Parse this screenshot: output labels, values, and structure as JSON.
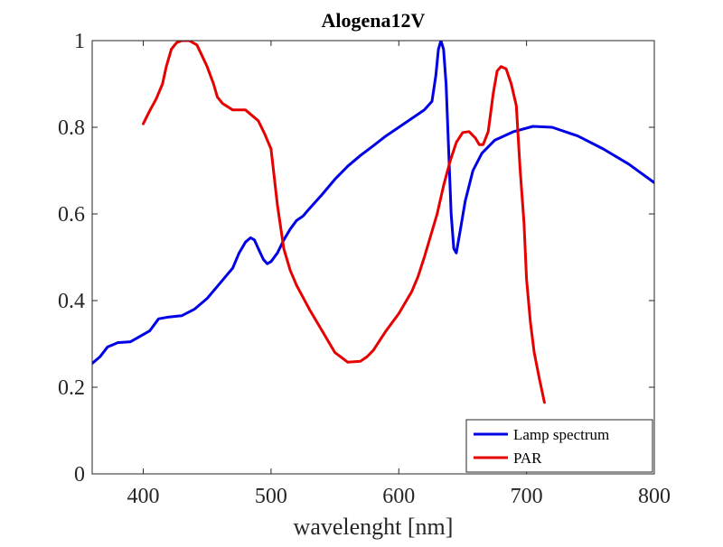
{
  "chart_data": {
    "type": "line",
    "title": "Alogena12V",
    "xlabel": "wavelenght [nm]",
    "ylabel": "",
    "xlim": [
      360,
      800
    ],
    "ylim": [
      0,
      1
    ],
    "xticks": [
      400,
      500,
      600,
      700,
      800
    ],
    "yticks": [
      0,
      0.2,
      0.4,
      0.6,
      0.8,
      1
    ],
    "xtick_labels": [
      "400",
      "500",
      "600",
      "700",
      "800"
    ],
    "ytick_labels": [
      "0",
      "0.2",
      "0.4",
      "0.6",
      "0.8",
      "1"
    ],
    "grid": false,
    "legend_position": "bottom-right",
    "series": [
      {
        "name": "Lamp spectrum",
        "color": "#0000e6",
        "x": [
          360,
          366,
          372,
          380,
          390,
          396,
          405,
          412,
          420,
          430,
          440,
          450,
          460,
          470,
          475,
          480,
          484,
          487,
          490,
          494,
          497,
          500,
          505,
          510,
          515,
          520,
          525,
          530,
          540,
          550,
          560,
          570,
          580,
          590,
          600,
          610,
          620,
          626,
          629,
          631,
          633,
          635,
          637,
          639,
          641,
          643,
          645,
          648,
          652,
          658,
          665,
          675,
          690,
          705,
          720,
          740,
          760,
          780,
          800
        ],
        "y": [
          0.255,
          0.27,
          0.293,
          0.303,
          0.305,
          0.315,
          0.33,
          0.358,
          0.362,
          0.365,
          0.38,
          0.405,
          0.44,
          0.475,
          0.51,
          0.535,
          0.545,
          0.54,
          0.52,
          0.495,
          0.485,
          0.49,
          0.51,
          0.54,
          0.565,
          0.585,
          0.595,
          0.612,
          0.645,
          0.68,
          0.71,
          0.735,
          0.757,
          0.78,
          0.8,
          0.82,
          0.84,
          0.86,
          0.92,
          0.98,
          1.0,
          0.98,
          0.9,
          0.75,
          0.6,
          0.52,
          0.51,
          0.56,
          0.63,
          0.7,
          0.74,
          0.77,
          0.79,
          0.802,
          0.8,
          0.78,
          0.75,
          0.715,
          0.672
        ]
      },
      {
        "name": "PAR",
        "color": "#e60000",
        "x": [
          400,
          405,
          410,
          415,
          418,
          422,
          426,
          430,
          436,
          442,
          446,
          450,
          455,
          458,
          462,
          470,
          480,
          490,
          495,
          500,
          505,
          507,
          510,
          515,
          520,
          530,
          540,
          550,
          560,
          570,
          575,
          580,
          590,
          600,
          610,
          615,
          620,
          625,
          630,
          635,
          640,
          645,
          650,
          655,
          660,
          663,
          666,
          670,
          674,
          677,
          680,
          684,
          688,
          692,
          695,
          698,
          700,
          703,
          706,
          710,
          714
        ],
        "y": [
          0.808,
          0.838,
          0.865,
          0.9,
          0.94,
          0.98,
          0.995,
          1.0,
          1.0,
          0.99,
          0.965,
          0.94,
          0.9,
          0.87,
          0.855,
          0.84,
          0.84,
          0.815,
          0.785,
          0.75,
          0.62,
          0.58,
          0.52,
          0.47,
          0.435,
          0.38,
          0.33,
          0.28,
          0.258,
          0.26,
          0.27,
          0.285,
          0.33,
          0.37,
          0.42,
          0.455,
          0.5,
          0.55,
          0.6,
          0.665,
          0.72,
          0.765,
          0.788,
          0.79,
          0.775,
          0.76,
          0.76,
          0.79,
          0.88,
          0.93,
          0.94,
          0.935,
          0.9,
          0.85,
          0.7,
          0.58,
          0.45,
          0.35,
          0.28,
          0.22,
          0.165
        ]
      }
    ]
  }
}
